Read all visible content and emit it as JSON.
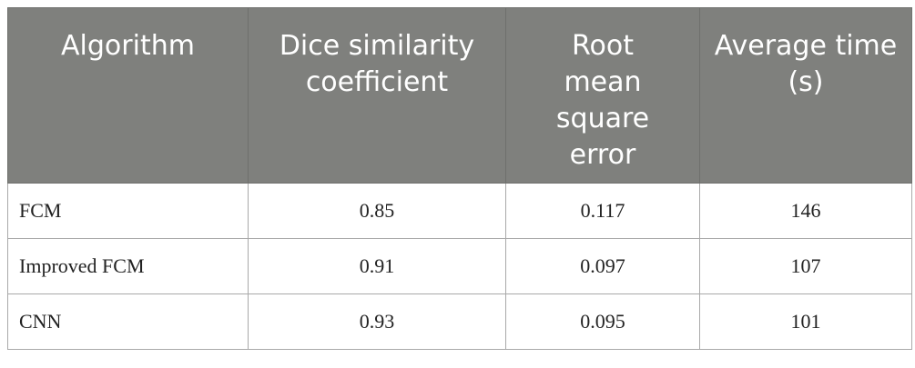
{
  "table": {
    "header": [
      "Algorithm",
      "Dice similarity coefficient",
      "Root mean square error",
      "Average time (s)"
    ],
    "rows": [
      [
        "FCM",
        "0.85",
        "0.117",
        "146"
      ],
      [
        "Improved FCM",
        "0.91",
        "0.097",
        "107"
      ],
      [
        "CNN",
        "0.93",
        "0.095",
        "101"
      ]
    ]
  }
}
